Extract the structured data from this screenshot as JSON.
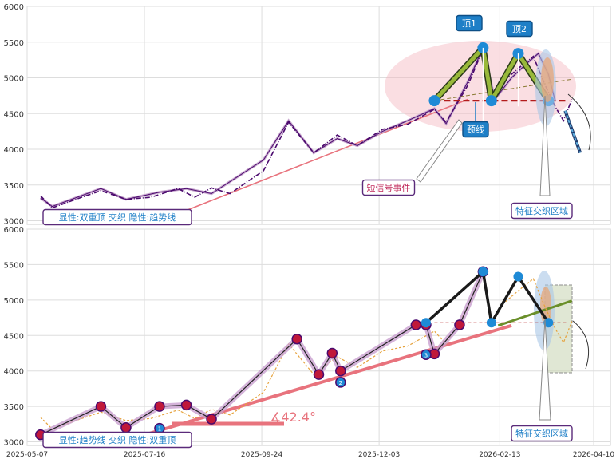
{
  "chart_data": [
    {
      "type": "line",
      "panel": "top",
      "ylim": [
        2950,
        6000
      ],
      "yticks": [
        3000,
        3500,
        4000,
        4500,
        5000,
        5500,
        6000
      ],
      "ytick_labels": [
        "3000",
        "3500",
        "4000",
        "4500",
        "5000",
        "5500",
        "6000"
      ],
      "xlim": [
        "2025-05-07",
        "2026-04-20"
      ],
      "grid": true,
      "series": [
        {
          "style": "dashdot",
          "color": "#4b0a6e",
          "x": [
            "2025-05-15",
            "2025-05-22",
            "2025-06-05",
            "2025-06-20",
            "2025-07-05",
            "2025-07-20",
            "2025-08-05",
            "2025-08-15",
            "2025-08-25",
            "2025-09-05",
            "2025-09-25",
            "2025-10-10",
            "2025-10-25",
            "2025-11-08",
            "2025-11-20",
            "2025-12-05",
            "2025-12-20",
            "2026-01-05",
            "2026-01-12",
            "2026-01-25",
            "2026-02-03",
            "2026-02-08",
            "2026-02-15",
            "2026-02-25",
            "2026-03-05",
            "2026-03-12",
            "2026-03-18",
            "2026-03-23",
            "2026-03-28"
          ],
          "y": [
            3350,
            3180,
            3300,
            3420,
            3300,
            3330,
            3450,
            3330,
            3460,
            3380,
            3700,
            4380,
            3950,
            4200,
            4050,
            4280,
            4350,
            4560,
            4380,
            4900,
            5400,
            4650,
            4950,
            5150,
            5300,
            4900,
            4600,
            4400,
            4700
          ]
        },
        {
          "style": "solid",
          "color": "#4b0a6e",
          "x": [
            "2025-05-15",
            "2025-05-22",
            "2025-06-20",
            "2025-07-05",
            "2025-07-25",
            "2025-08-10",
            "2025-08-25",
            "2025-09-25",
            "2025-10-10",
            "2025-10-25",
            "2025-11-08",
            "2025-11-20",
            "2025-12-05",
            "2025-12-20",
            "2026-01-05",
            "2026-01-12",
            "2026-01-25",
            "2026-02-03",
            "2026-02-10",
            "2026-02-20",
            "2026-03-01",
            "2026-03-08",
            "2026-03-14",
            "2026-03-18"
          ],
          "y": [
            3320,
            3200,
            3450,
            3300,
            3400,
            3450,
            3380,
            3850,
            4400,
            3950,
            4150,
            4050,
            4250,
            4400,
            4570,
            4360,
            4950,
            5420,
            4700,
            5000,
            5200,
            5340,
            5050,
            4680
          ]
        }
      ],
      "trendline": {
        "x": [
          "2025-07-20",
          "2026-01-25"
        ],
        "y": [
          2950,
          4700
        ]
      },
      "double_top": {
        "x": [
          "2026-01-05",
          "2026-02-03",
          "2026-02-08",
          "2026-02-24",
          "2026-03-14"
        ],
        "y": [
          4680,
          5420,
          4680,
          5340,
          4680
        ]
      },
      "neckline": {
        "y": 4680,
        "x": [
          "2026-01-05",
          "2026-03-25"
        ]
      },
      "forecast": {
        "x": [
          "2026-03-24",
          "2026-04-02"
        ],
        "y": [
          4540,
          3950
        ]
      },
      "annotations": {
        "top1": "顶1",
        "top2": "顶2",
        "neckline": "颈线",
        "short_signal": "短信号事件",
        "feature_zone": "特征交织区域",
        "legend": "显性:双重顶 交织 隐性:趋势线"
      }
    },
    {
      "type": "line",
      "panel": "bottom",
      "ylim": [
        2950,
        6000
      ],
      "yticks": [
        3000,
        3500,
        4000,
        4500,
        5000,
        5500,
        6000
      ],
      "ytick_labels": [
        "3000",
        "3500",
        "4000",
        "4500",
        "5000",
        "5500",
        "6000"
      ],
      "xticks": [
        "2025-05-07",
        "2025-07-16",
        "2025-09-24",
        "2025-12-03",
        "2026-02-13",
        "2026-04-10"
      ],
      "xlim": [
        "2025-05-07",
        "2026-04-20"
      ],
      "grid": true,
      "series": [
        {
          "style": "dashed",
          "color": "#e6a23c",
          "x": [
            "2025-05-15",
            "2025-05-22",
            "2025-06-05",
            "2025-06-20",
            "2025-07-05",
            "2025-07-20",
            "2025-08-05",
            "2025-08-15",
            "2025-08-25",
            "2025-09-05",
            "2025-09-25",
            "2025-10-10",
            "2025-10-25",
            "2025-11-08",
            "2025-11-20",
            "2025-12-05",
            "2025-12-20",
            "2026-01-05",
            "2026-01-12",
            "2026-01-25",
            "2026-02-03",
            "2026-02-08",
            "2026-02-15",
            "2026-02-25",
            "2026-03-05",
            "2026-03-12",
            "2026-03-18",
            "2026-03-23",
            "2026-03-28"
          ],
          "y": [
            3350,
            3180,
            3300,
            3420,
            3300,
            3330,
            3450,
            3330,
            3460,
            3380,
            3700,
            4380,
            3950,
            4200,
            4050,
            4280,
            4350,
            4560,
            4380,
            4900,
            5400,
            4650,
            4950,
            5150,
            5300,
            4900,
            4600,
            4400,
            4700
          ]
        }
      ],
      "trend_path": {
        "x": [
          "2025-05-15",
          "2025-06-20",
          "2025-07-05",
          "2025-07-25",
          "2025-08-10",
          "2025-08-25",
          "2025-10-15",
          "2025-10-28",
          "2025-11-05",
          "2025-11-10",
          "2025-12-25",
          "2025-12-31",
          "2026-01-05",
          "2026-01-20",
          "2026-02-03"
        ],
        "y": [
          3100,
          3500,
          3200,
          3500,
          3520,
          3320,
          4450,
          3950,
          4250,
          4000,
          4650,
          4650,
          4240,
          4650,
          5400
        ]
      },
      "trendline": {
        "x": [
          "2025-06-25",
          "2026-02-20"
        ],
        "y": [
          2950,
          4640
        ]
      },
      "pivots": {
        "labels": [
          "1",
          "2",
          "3"
        ],
        "x": [
          "2025-07-25",
          "2025-11-10",
          "2025-12-31"
        ],
        "y": [
          3190,
          3840,
          4230
        ]
      },
      "double_top": {
        "x": [
          "2025-12-31",
          "2026-02-03",
          "2026-02-08",
          "2026-02-24",
          "2026-03-14"
        ],
        "y": [
          4680,
          5400,
          4680,
          5330,
          4680
        ]
      },
      "neckline": {
        "y": 4680,
        "x": [
          "2026-01-05",
          "2026-03-25"
        ]
      },
      "green_line": {
        "x": [
          "2026-02-12",
          "2026-03-28"
        ],
        "y": [
          4640,
          4990
        ]
      },
      "angle_label": "∡42.4°",
      "annotations": {
        "feature_zone": "特征交织区域",
        "legend": "显性:趋势线 交织 隐性:双重顶"
      }
    }
  ]
}
